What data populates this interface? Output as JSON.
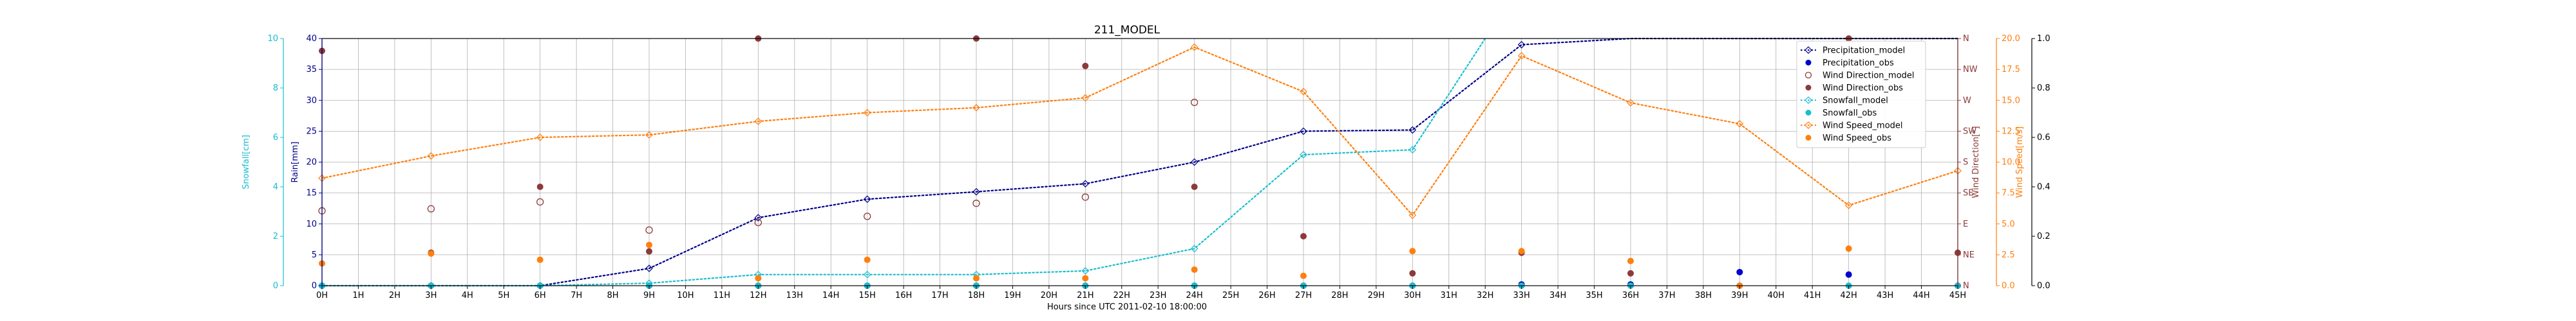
{
  "chart_data": {
    "type": "line",
    "title": "211_MODEL",
    "xlabel": "Hours since UTC 2011-02-10 18:00:00",
    "x_ticks": [
      "0H",
      "1H",
      "2H",
      "3H",
      "4H",
      "5H",
      "6H",
      "7H",
      "8H",
      "9H",
      "10H",
      "11H",
      "12H",
      "13H",
      "14H",
      "15H",
      "16H",
      "17H",
      "18H",
      "19H",
      "20H",
      "21H",
      "22H",
      "23H",
      "24H",
      "25H",
      "26H",
      "27H",
      "28H",
      "29H",
      "30H",
      "31H",
      "32H",
      "33H",
      "34H",
      "35H",
      "36H",
      "37H",
      "38H",
      "39H",
      "40H",
      "41H",
      "42H",
      "43H",
      "44H",
      "45H"
    ],
    "xlim": [
      0,
      45
    ],
    "grid": true,
    "legend_position": "top-right",
    "axes": {
      "rain": {
        "label": "Rain[mm]",
        "range": [
          0,
          40
        ],
        "ticks": [
          "0",
          "5",
          "10",
          "15",
          "20",
          "25",
          "30",
          "35",
          "40"
        ],
        "color": "#00008b"
      },
      "snowfall": {
        "label": "Snowfall[cm]",
        "range": [
          0,
          10
        ],
        "ticks": [
          "0",
          "2",
          "4",
          "6",
          "8",
          "10"
        ],
        "color": "#17becf"
      },
      "wind_direction": {
        "label": "Wind Direction[°]",
        "range": [
          0,
          360
        ],
        "ticks": [
          "N",
          "NE",
          "E",
          "SE",
          "S",
          "SW",
          "W",
          "NW",
          "N"
        ],
        "color": "#8c3a3a"
      },
      "wind_speed": {
        "label": "Wind Speed[m/s]",
        "range": [
          0,
          20
        ],
        "ticks": [
          "0.0",
          "2.5",
          "5.0",
          "7.5",
          "10.0",
          "12.5",
          "15.0",
          "17.5",
          "20.0"
        ],
        "color": "#ff7f0e"
      },
      "outer": {
        "range": [
          0,
          1
        ],
        "ticks": [
          "0.0",
          "0.2",
          "0.4",
          "0.6",
          "0.8",
          "1.0"
        ]
      }
    },
    "series": [
      {
        "name": "Precipitation_model",
        "axis": "rain",
        "style": "dotted-line-open-diamond",
        "color": "#00008b",
        "x": [
          0,
          3,
          6,
          9,
          12,
          15,
          18,
          21,
          24,
          27,
          30,
          33,
          36,
          39,
          42,
          45
        ],
        "values": [
          0,
          0,
          0,
          2.8,
          11,
          14,
          15.2,
          16.5,
          20,
          25,
          25.2,
          39,
          40,
          41,
          42,
          43
        ]
      },
      {
        "name": "Precipitation_obs",
        "axis": "rain",
        "style": "points",
        "color": "#0000cd",
        "x": [
          0,
          3,
          6,
          9,
          12,
          15,
          18,
          21,
          24,
          27,
          30,
          33,
          36,
          39,
          42,
          45
        ],
        "values": [
          0,
          0,
          0,
          0,
          0,
          0,
          0,
          0,
          0,
          0,
          0,
          0.2,
          0.2,
          2.2,
          1.8,
          0
        ]
      },
      {
        "name": "Wind Direction_model",
        "axis": "wind_direction",
        "style": "open-circles",
        "color": "#8c3a3a",
        "x": [
          0,
          3,
          6,
          9,
          12,
          15,
          18,
          21,
          24
        ],
        "values": [
          109,
          112,
          122,
          81,
          92,
          101,
          120,
          129,
          267
        ]
      },
      {
        "name": "Wind Direction_obs",
        "axis": "wind_direction",
        "style": "points",
        "color": "#8c3a3a",
        "x": [
          0,
          3,
          6,
          9,
          12,
          18,
          21,
          24,
          27,
          30,
          33,
          36,
          42,
          45
        ],
        "values": [
          342,
          48,
          144,
          50,
          360,
          360,
          320,
          144,
          72,
          18,
          48,
          18,
          360,
          48
        ]
      },
      {
        "name": "Snowfall_model",
        "axis": "snowfall",
        "style": "dotted-line-open-diamond",
        "color": "#17becf",
        "x": [
          0,
          3,
          6,
          9,
          12,
          15,
          18,
          21,
          24,
          27,
          30,
          32
        ],
        "values": [
          0,
          0,
          0,
          0.1,
          0.45,
          0.45,
          0.45,
          0.6,
          1.5,
          5.3,
          5.5,
          10
        ]
      },
      {
        "name": "Snowfall_obs",
        "axis": "snowfall",
        "style": "points",
        "color": "#17becf",
        "x": [
          0,
          3,
          6,
          9,
          12,
          15,
          18,
          21,
          24,
          27,
          30,
          33,
          36,
          39,
          42,
          45
        ],
        "values": [
          0,
          0,
          0,
          0,
          0,
          0,
          0,
          0,
          0,
          0,
          0,
          0,
          0,
          0,
          0,
          0
        ]
      },
      {
        "name": "Wind Speed_model",
        "axis": "wind_speed",
        "style": "dotted-line-open-diamond",
        "color": "#ff7f0e",
        "x": [
          0,
          3,
          6,
          9,
          12,
          15,
          18,
          21,
          24,
          27,
          30,
          33,
          36,
          39,
          42,
          45
        ],
        "values": [
          8.7,
          10.5,
          12,
          12.2,
          13.3,
          14,
          14.4,
          15.2,
          19.3,
          15.7,
          5.7,
          18.6,
          14.8,
          13.1,
          6.5,
          9.3
        ]
      },
      {
        "name": "Wind Speed_obs",
        "axis": "wind_speed",
        "style": "points",
        "color": "#ff7f0e",
        "x": [
          0,
          3,
          6,
          9,
          12,
          15,
          18,
          21,
          24,
          27,
          30,
          33,
          36,
          39,
          42
        ],
        "values": [
          1.8,
          2.6,
          2.1,
          3.3,
          0.6,
          2.1,
          0.6,
          0.6,
          1.3,
          0.8,
          2.8,
          2.8,
          2,
          0,
          3
        ]
      }
    ]
  }
}
